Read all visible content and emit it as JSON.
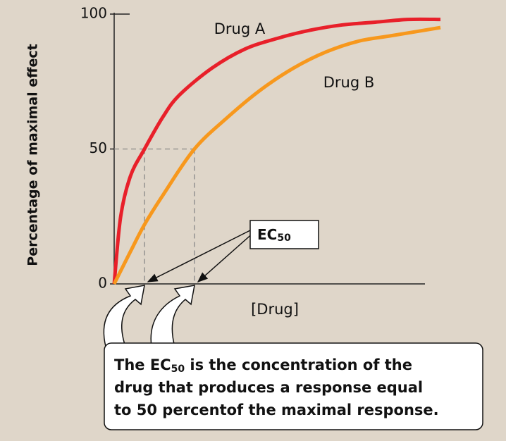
{
  "chart_data": {
    "type": "line",
    "y_label": "Percentage of maximal effect",
    "x_label": "[Drug]",
    "xlim": [
      0,
      100
    ],
    "ylim": [
      0,
      100
    ],
    "yticks": [
      0,
      50,
      100
    ],
    "ec50_x": [
      9.3,
      24.6
    ],
    "series": [
      {
        "name": "Drug A",
        "color": "#e8202a",
        "x": [
          0,
          2,
          5,
          9.3,
          15,
          20,
          30,
          40,
          50,
          60,
          70,
          80,
          90,
          100
        ],
        "values": [
          0,
          25,
          40,
          50,
          62,
          70,
          80,
          87,
          91,
          94,
          96,
          97,
          98,
          98
        ]
      },
      {
        "name": "Drug B",
        "color": "#f7981d",
        "x": [
          0,
          5,
          9.3,
          15,
          24.6,
          35,
          45,
          55,
          65,
          75,
          85,
          100
        ],
        "values": [
          0,
          12,
          22,
          33,
          50,
          62,
          72,
          80,
          86,
          90,
          92,
          95
        ]
      }
    ],
    "ec50_label": {
      "main": "EC",
      "sub": "50"
    },
    "note_lines": [
      [
        "The EC",
        "50",
        " is the concentration of the"
      ],
      [
        "drug that produces a response equal"
      ],
      [
        "to 50 percentof the maximal response."
      ]
    ]
  }
}
